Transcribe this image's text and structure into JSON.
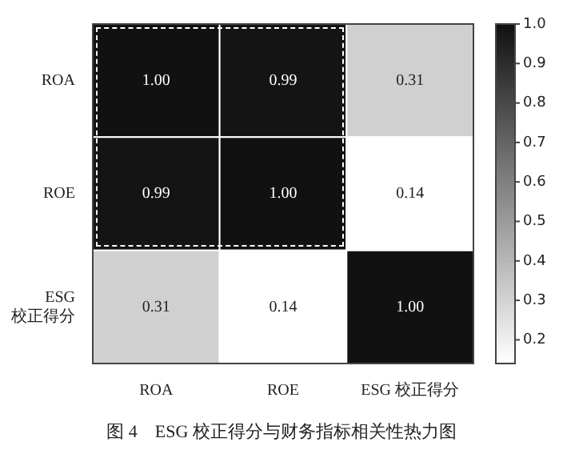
{
  "chart_data": {
    "type": "heatmap",
    "title": "图 4　ESG 校正得分与财务指标相关性热力图",
    "categories": [
      "ROA",
      "ROE",
      "ESG 校正得分"
    ],
    "y_categories": [
      "ROA",
      "ROE",
      "ESG 校正得分"
    ],
    "cells": [
      [
        1.0,
        0.99,
        0.31
      ],
      [
        0.99,
        1.0,
        0.14
      ],
      [
        0.31,
        0.14,
        1.0
      ]
    ],
    "cell_labels": [
      [
        "1.00",
        "0.99",
        "0.31"
      ],
      [
        "0.99",
        "1.00",
        "0.14"
      ],
      [
        "0.31",
        "0.14",
        "1.00"
      ]
    ],
    "clim": [
      0.14,
      1.0
    ],
    "cticks": [
      {
        "value": 0.2,
        "label": "0.2"
      },
      {
        "value": 0.3,
        "label": "0.3"
      },
      {
        "value": 0.4,
        "label": "0.4"
      },
      {
        "value": 0.5,
        "label": "0.5"
      },
      {
        "value": 0.6,
        "label": "0.6"
      },
      {
        "value": 0.7,
        "label": "0.7"
      },
      {
        "value": 0.8,
        "label": "0.8"
      },
      {
        "value": 0.9,
        "label": "0.9"
      },
      {
        "value": 1.0,
        "label": "1.0"
      }
    ]
  }
}
